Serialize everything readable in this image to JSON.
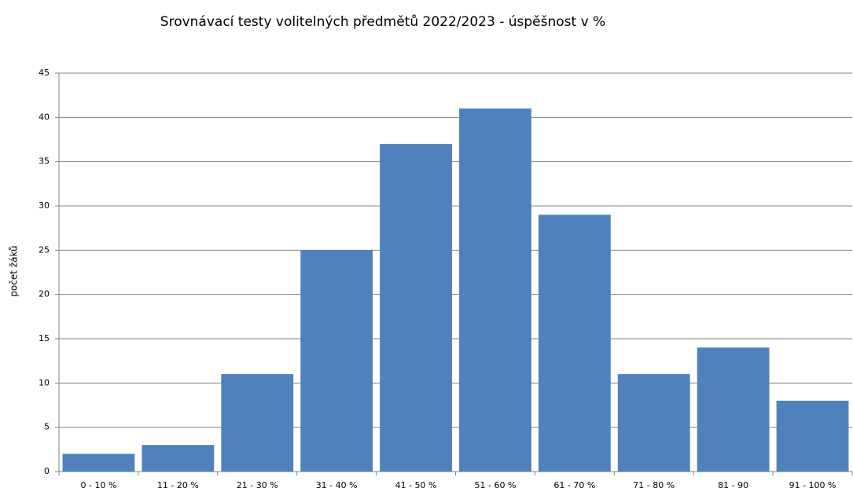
{
  "chart_data": {
    "type": "bar",
    "title": "Srovnávací testy volitelných předmětů 2022/2023 - úspěšnost v %",
    "y_label": "počet žáků",
    "categories": [
      "0 - 10 %",
      "11 - 20 %",
      "21 - 30 %",
      "31 - 40 %",
      "41 - 50 %",
      "51 - 60 %",
      "61 - 70 %",
      "71 - 80 %",
      "81 - 90",
      "91 - 100 %"
    ],
    "values": [
      2,
      3,
      11,
      25,
      37,
      41,
      29,
      11,
      14,
      8
    ],
    "color": "#4f81bd",
    "ylim": [
      0,
      45
    ],
    "yticks": [
      0,
      5,
      10,
      15,
      20,
      25,
      30,
      35,
      40,
      45
    ],
    "grid": true
  }
}
